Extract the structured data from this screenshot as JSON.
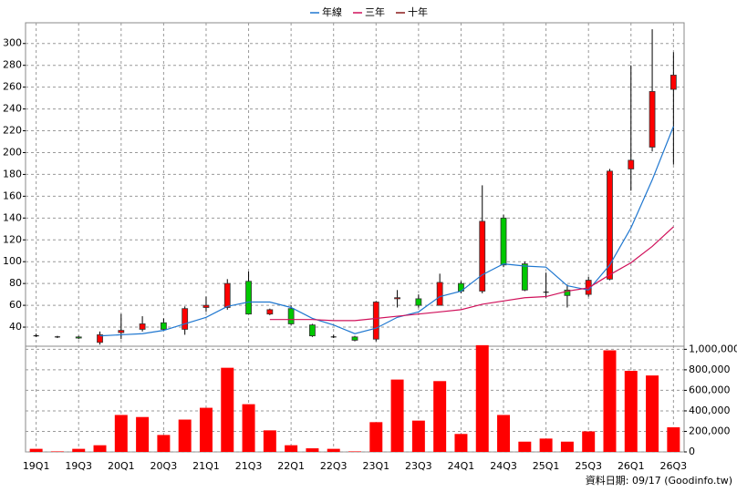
{
  "chart_data": [
    {
      "type": "candlestick",
      "categories": [
        "19Q1",
        null,
        "19Q3",
        null,
        "20Q1",
        null,
        "20Q3",
        null,
        "21Q1",
        null,
        "21Q3",
        null,
        "22Q1",
        null,
        "22Q3",
        null,
        "23Q1",
        null,
        "23Q3",
        null,
        "24Q1",
        null,
        "24Q3",
        null,
        "25Q1",
        null,
        "25Q3",
        null,
        "26Q1",
        null,
        "26Q3"
      ],
      "open": [
        32,
        31,
        31,
        26,
        35,
        38,
        44,
        38,
        58,
        58,
        82,
        52,
        57,
        42,
        31,
        31,
        29,
        66,
        66,
        60,
        80,
        73,
        140,
        98,
        72,
        74,
        70,
        84,
        185,
        205,
        258
      ],
      "high": [
        34,
        32,
        32,
        36,
        52,
        50,
        48,
        59,
        68,
        84,
        91,
        57,
        60,
        43,
        33,
        32,
        64,
        74,
        70,
        89,
        82,
        170,
        143,
        100,
        90,
        79,
        86,
        185,
        280,
        313,
        292
      ],
      "low": [
        31,
        30,
        29,
        24,
        29,
        36,
        37,
        33,
        54,
        56,
        52,
        51,
        42,
        31,
        30,
        27,
        27,
        58,
        58,
        60,
        71,
        71,
        95,
        73,
        67,
        58,
        68,
        83,
        165,
        201,
        189
      ],
      "close": [
        32,
        31,
        30,
        33,
        37,
        43,
        38,
        57,
        60,
        80,
        52,
        56,
        43,
        32,
        31,
        28,
        63,
        67,
        60,
        81,
        73,
        137,
        97,
        74,
        72,
        69,
        83,
        183,
        193,
        256,
        271
      ],
      "up_color": "#ff0000",
      "down_color": "#00c800",
      "series": [
        {
          "name": "年線",
          "color": "#1f77d0",
          "values": [
            null,
            null,
            null,
            32,
            33,
            34,
            37,
            43,
            49,
            59,
            63,
            63,
            58,
            48,
            42,
            34,
            39,
            49,
            54,
            68,
            73,
            88,
            98,
            96,
            95,
            78,
            74,
            97,
            131,
            175,
            224
          ]
        },
        {
          "name": "三年",
          "color": "#d0105a",
          "values": [
            null,
            null,
            null,
            null,
            null,
            null,
            null,
            null,
            null,
            null,
            null,
            47,
            47,
            47,
            46,
            46,
            48,
            50,
            52,
            54,
            56,
            61,
            64,
            67,
            68,
            73,
            76,
            88,
            99,
            114,
            132
          ]
        },
        {
          "name": "十年",
          "color": "#8b1a1a",
          "values": [
            null,
            null,
            null,
            null,
            null,
            null,
            null,
            null,
            null,
            null,
            null,
            null,
            null,
            null,
            null,
            null,
            null,
            null,
            null,
            null,
            null,
            null,
            null,
            null,
            null,
            null,
            null,
            null,
            null,
            null,
            null
          ]
        }
      ],
      "ylim": [
        22.5,
        319
      ],
      "yticks": [
        40,
        60,
        80,
        100,
        120,
        140,
        160,
        180,
        200,
        220,
        240,
        260,
        280,
        300
      ],
      "grid": true
    },
    {
      "type": "bar",
      "values": [
        30000,
        5000,
        30000,
        65000,
        360000,
        340000,
        165000,
        315000,
        430000,
        820000,
        465000,
        210000,
        65000,
        35000,
        30000,
        5000,
        290000,
        705000,
        305000,
        690000,
        175000,
        1040000,
        360000,
        100000,
        130000,
        100000,
        200000,
        990000,
        790000,
        745000,
        240000
      ],
      "color": "#ff0000",
      "ylim": [
        0,
        1030000
      ],
      "yticks": [
        {
          "value": 0,
          "label": "0"
        },
        {
          "value": 200000,
          "label": "200,000"
        },
        {
          "value": 400000,
          "label": "400,000"
        },
        {
          "value": 600000,
          "label": "600,000"
        },
        {
          "value": 800000,
          "label": "800,000"
        },
        {
          "value": 1000000,
          "label": "1,000,000"
        }
      ],
      "grid": true
    }
  ],
  "source": "資料日期: 09/17  (Goodinfo.tw)"
}
